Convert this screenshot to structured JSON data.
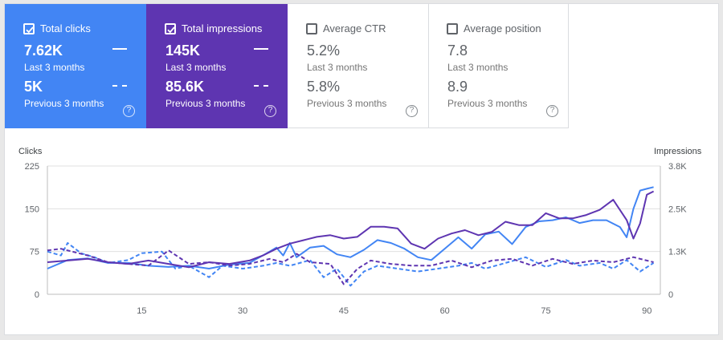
{
  "colors": {
    "clicks": "#4285f4",
    "impressions": "#5e35b1",
    "clicks_line": "#4285f4",
    "impressions_line": "#5e35b1"
  },
  "cards": [
    {
      "label": "Total clicks",
      "checked": true,
      "value": "7.62K",
      "period": "Last 3 months",
      "prev_value": "5K",
      "prev_period": "Previous 3 months",
      "help": "?"
    },
    {
      "label": "Total impressions",
      "checked": true,
      "value": "145K",
      "period": "Last 3 months",
      "prev_value": "85.6K",
      "prev_period": "Previous 3 months",
      "help": "?"
    },
    {
      "label": "Average CTR",
      "checked": false,
      "value": "5.2%",
      "period": "Last 3 months",
      "prev_value": "5.8%",
      "prev_period": "Previous 3 months",
      "help": "?"
    },
    {
      "label": "Average position",
      "checked": false,
      "value": "7.8",
      "period": "Last 3 months",
      "prev_value": "8.9",
      "prev_period": "Previous 3 months",
      "help": "?"
    }
  ],
  "chart_data": {
    "type": "line",
    "ylabel": "Clicks",
    "y2label": "Impressions",
    "ylim": [
      0,
      225
    ],
    "y2lim": [
      0,
      3800
    ],
    "yticks": [
      "0",
      "75",
      "150",
      "225"
    ],
    "y2ticks": [
      "0",
      "1.3K",
      "2.5K",
      "3.8K"
    ],
    "xticks": [
      "15",
      "30",
      "45",
      "60",
      "75",
      "90"
    ],
    "xlim": [
      1,
      92
    ],
    "grid": true,
    "legend": "none",
    "series": [
      {
        "axis": "y1",
        "metric": "clicks",
        "period": "current",
        "style": "solid",
        "x": [
          1,
          4,
          7,
          10,
          13,
          16,
          19,
          22,
          25,
          28,
          31,
          34,
          35,
          36,
          37,
          38,
          40,
          42,
          44,
          46,
          48,
          50,
          52,
          54,
          56,
          58,
          60,
          62,
          64,
          66,
          68,
          70,
          72,
          74,
          76,
          78,
          80,
          82,
          84,
          86,
          87,
          88,
          89,
          90,
          91
        ],
        "values": [
          45,
          60,
          63,
          55,
          55,
          50,
          48,
          50,
          45,
          52,
          55,
          75,
          82,
          68,
          90,
          65,
          82,
          85,
          70,
          65,
          78,
          95,
          90,
          80,
          65,
          60,
          80,
          100,
          80,
          105,
          110,
          88,
          118,
          128,
          130,
          135,
          125,
          130,
          130,
          118,
          100,
          150,
          182,
          185,
          188
        ]
      },
      {
        "axis": "y1",
        "metric": "clicks",
        "period": "previous",
        "style": "dashed",
        "x": [
          1,
          3,
          4,
          6,
          8,
          10,
          13,
          15,
          18,
          20,
          22,
          25,
          27,
          30,
          33,
          35,
          37,
          40,
          42,
          44,
          46,
          48,
          50,
          53,
          56,
          59,
          62,
          64,
          66,
          69,
          72,
          75,
          78,
          80,
          83,
          85,
          87,
          89,
          91
        ],
        "values": [
          75,
          68,
          90,
          72,
          65,
          55,
          60,
          72,
          75,
          45,
          50,
          30,
          50,
          45,
          50,
          55,
          50,
          60,
          30,
          45,
          15,
          40,
          50,
          45,
          40,
          45,
          50,
          55,
          45,
          55,
          65,
          48,
          60,
          50,
          55,
          45,
          60,
          40,
          55
        ]
      },
      {
        "axis": "y2",
        "metric": "impressions",
        "period": "current",
        "style": "solid",
        "x": [
          1,
          4,
          7,
          10,
          13,
          16,
          19,
          22,
          25,
          28,
          31,
          33,
          35,
          37,
          39,
          41,
          43,
          45,
          47,
          49,
          51,
          53,
          55,
          57,
          59,
          61,
          63,
          65,
          67,
          69,
          71,
          73,
          75,
          77,
          79,
          81,
          83,
          85,
          87,
          88,
          89,
          90,
          91
        ],
        "values": [
          950,
          1000,
          1050,
          950,
          900,
          1000,
          900,
          800,
          950,
          900,
          1000,
          1150,
          1350,
          1500,
          1600,
          1700,
          1750,
          1650,
          1700,
          2000,
          2000,
          1950,
          1500,
          1350,
          1650,
          1800,
          1900,
          1750,
          1850,
          2150,
          2050,
          2050,
          2400,
          2250,
          2250,
          2350,
          2500,
          2800,
          2200,
          1650,
          2100,
          2950,
          3050
        ]
      },
      {
        "axis": "y2",
        "metric": "impressions",
        "period": "previous",
        "style": "dashed",
        "x": [
          1,
          3,
          5,
          7,
          10,
          13,
          16,
          19,
          22,
          25,
          28,
          31,
          34,
          36,
          38,
          40,
          43,
          45,
          47,
          49,
          52,
          55,
          58,
          61,
          64,
          67,
          70,
          73,
          76,
          79,
          82,
          85,
          88,
          91
        ],
        "values": [
          1300,
          1350,
          1250,
          1150,
          950,
          900,
          850,
          1300,
          900,
          950,
          850,
          900,
          1050,
          950,
          1200,
          950,
          900,
          300,
          750,
          1000,
          900,
          850,
          850,
          1000,
          800,
          1000,
          1050,
          850,
          1050,
          900,
          1000,
          950,
          1100,
          950
        ]
      }
    ]
  }
}
